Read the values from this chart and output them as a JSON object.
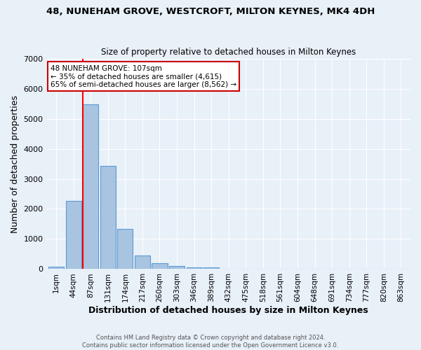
{
  "title1": "48, NUNEHAM GROVE, WESTCROFT, MILTON KEYNES, MK4 4DH",
  "title2": "Size of property relative to detached houses in Milton Keynes",
  "xlabel": "Distribution of detached houses by size in Milton Keynes",
  "ylabel": "Number of detached properties",
  "footer1": "Contains HM Land Registry data © Crown copyright and database right 2024.",
  "footer2": "Contains public sector information licensed under the Open Government Licence v3.0.",
  "bar_labels": [
    "1sqm",
    "44sqm",
    "87sqm",
    "131sqm",
    "174sqm",
    "217sqm",
    "260sqm",
    "303sqm",
    "346sqm",
    "389sqm",
    "432sqm",
    "475sqm",
    "518sqm",
    "561sqm",
    "604sqm",
    "648sqm",
    "691sqm",
    "734sqm",
    "777sqm",
    "820sqm",
    "863sqm"
  ],
  "bar_values": [
    75,
    2270,
    5470,
    3440,
    1330,
    460,
    190,
    100,
    65,
    55,
    0,
    0,
    0,
    0,
    0,
    0,
    0,
    0,
    0,
    0,
    0
  ],
  "bar_color": "#a8c4e0",
  "bar_edge_color": "#5b9bd5",
  "background_color": "#e8f0f8",
  "grid_color": "#ffffff",
  "red_line_index": 2,
  "annotation_line1": "48 NUNEHAM GROVE: 107sqm",
  "annotation_line2": "← 35% of detached houses are smaller (4,615)",
  "annotation_line3": "65% of semi-detached houses are larger (8,562) →",
  "annotation_box_color": "#ffffff",
  "annotation_box_edge": "#cc0000",
  "ylim": [
    0,
    7000
  ],
  "yticks": [
    0,
    1000,
    2000,
    3000,
    4000,
    5000,
    6000,
    7000
  ]
}
